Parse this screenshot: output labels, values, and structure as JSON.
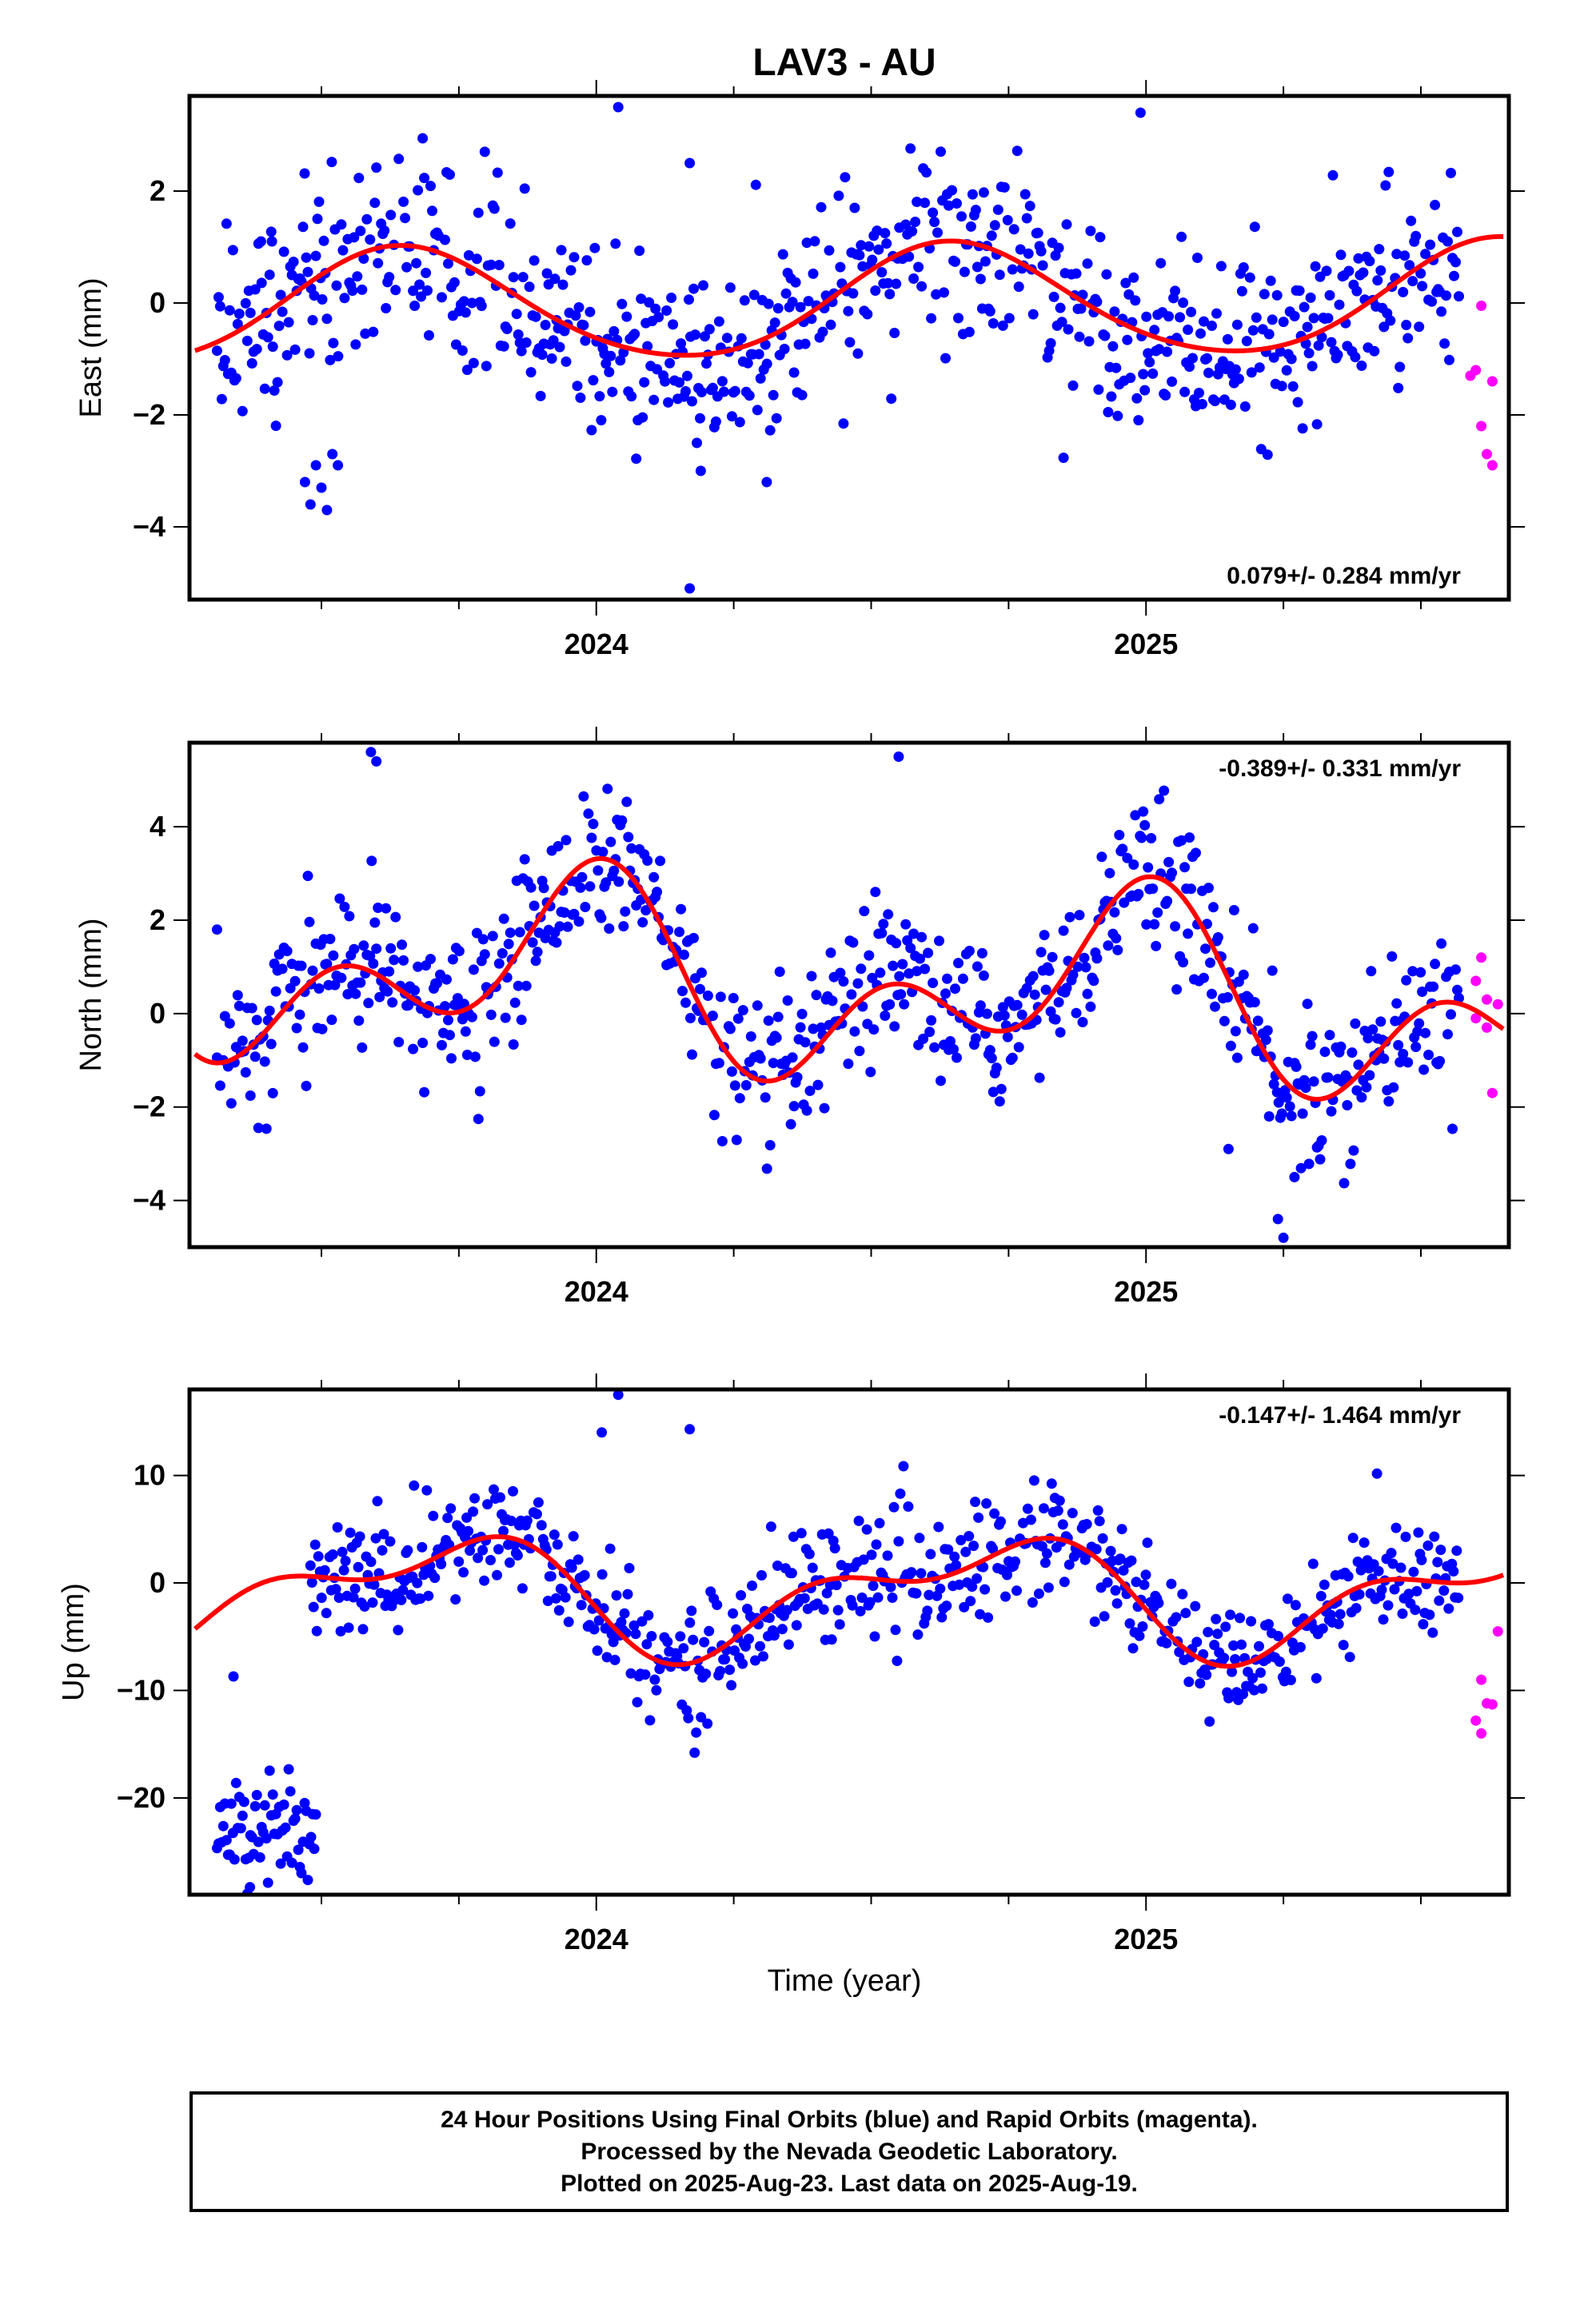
{
  "title": "LAV3 - AU",
  "xlabel": "Time (year)",
  "footer": {
    "line1": "24 Hour Positions Using Final Orbits (blue) and Rapid Orbits (magenta).",
    "line2": "Processed by the Nevada Geodetic Laboratory.",
    "line3": "Plotted on 2025-Aug-23. Last data on 2025-Aug-19."
  },
  "colors": {
    "final": "#0000ff",
    "rapid": "#ff00ff",
    "model": "#ff0000",
    "frame": "#000000"
  },
  "chart_data": [
    {
      "type": "scatter",
      "ylabel": "East (mm)",
      "rate_label": "0.079+/- 0.284 mm/yr",
      "rate_position": "bottom-right",
      "xlim": [
        2023.26,
        2025.66
      ],
      "ylim": [
        -5.3,
        3.7
      ],
      "x_ticks": [
        2024,
        2025
      ],
      "x_tick_labels": [
        "2024",
        "2025"
      ],
      "y_ticks": [
        -4,
        -2,
        0,
        2
      ],
      "y_tick_labels": [
        "−4",
        "−2",
        "0",
        "2"
      ],
      "grid": false,
      "model": {
        "mean": 0.0,
        "rate": 0.079,
        "a1": -1.0,
        "p1": 0.1,
        "a2": 0.1,
        "p2": 0.0
      },
      "final_noise": 0.8,
      "final_span": [
        2023.31,
        2025.57
      ],
      "final_extra": [
        [
          2023.48,
          -3.6
        ],
        [
          2023.5,
          -3.3
        ],
        [
          2023.49,
          -2.9
        ],
        [
          2023.52,
          -2.7
        ],
        [
          2023.47,
          -3.2
        ],
        [
          2023.51,
          -3.7
        ],
        [
          2023.53,
          -2.9
        ],
        [
          2024.17,
          -5.1
        ],
        [
          2024.19,
          -3.0
        ],
        [
          2024.31,
          -3.2
        ],
        [
          2024.99,
          3.4
        ],
        [
          2024.04,
          3.5
        ],
        [
          2024.17,
          2.5
        ],
        [
          2023.39,
          1.1
        ],
        [
          2023.41,
          1.1
        ]
      ],
      "rapid_points": [
        [
          2025.59,
          -1.3
        ],
        [
          2025.6,
          -1.2
        ],
        [
          2025.61,
          -2.2
        ],
        [
          2025.62,
          -2.7
        ],
        [
          2025.63,
          -2.9
        ],
        [
          2025.63,
          -1.4
        ],
        [
          2025.61,
          -0.05
        ]
      ]
    },
    {
      "type": "scatter",
      "ylabel": "North (mm)",
      "rate_label": "-0.389+/- 0.331 mm/yr",
      "rate_position": "top-right",
      "xlim": [
        2023.26,
        2025.66
      ],
      "ylim": [
        -5.0,
        5.8
      ],
      "x_ticks": [
        2024,
        2025
      ],
      "x_tick_labels": [
        "2024",
        "2025"
      ],
      "y_ticks": [
        -4,
        -2,
        0,
        2,
        4
      ],
      "y_tick_labels": [
        "−4",
        "−2",
        "0",
        "2",
        "4"
      ],
      "grid": false,
      "model": {
        "mean": 0.55,
        "rate": -0.389,
        "a1": 1.4,
        "p1": 0.3,
        "a2": 1.3,
        "p2": 0.1
      },
      "final_noise": 0.8,
      "final_span": [
        2023.31,
        2025.57
      ],
      "final_extra": [
        [
          2023.59,
          5.6
        ],
        [
          2023.6,
          5.4
        ],
        [
          2024.55,
          5.5
        ],
        [
          2025.24,
          -4.4
        ],
        [
          2025.25,
          -4.8
        ],
        [
          2025.27,
          -3.5
        ],
        [
          2023.31,
          1.8
        ],
        [
          2025.15,
          -2.9
        ]
      ],
      "rapid_points": [
        [
          2025.6,
          0.7
        ],
        [
          2025.61,
          1.2
        ],
        [
          2025.62,
          0.3
        ],
        [
          2025.62,
          -0.3
        ],
        [
          2025.63,
          -1.7
        ],
        [
          2025.64,
          0.2
        ],
        [
          2025.6,
          -0.1
        ]
      ]
    },
    {
      "type": "scatter",
      "ylabel": "Up (mm)",
      "rate_label": "-0.147+/- 1.464 mm/yr",
      "rate_position": "top-right",
      "xlim": [
        2023.26,
        2025.66
      ],
      "ylim": [
        -29,
        18
      ],
      "x_ticks": [
        2024,
        2025
      ],
      "x_tick_labels": [
        "2024",
        "2025"
      ],
      "y_ticks": [
        -20,
        -10,
        0,
        10
      ],
      "y_tick_labels": [
        "−20",
        "−10",
        "0",
        "10"
      ],
      "grid": false,
      "model": {
        "mean": -1.0,
        "rate": -0.147,
        "a1": 4.5,
        "p1": 0.55,
        "a2": 2.5,
        "p2": 0.25
      },
      "final_noise": 2.8,
      "final_span": [
        2023.48,
        2025.57
      ],
      "offset_cluster": {
        "span": [
          2023.31,
          2023.49
        ],
        "mean": -22.5,
        "noise": 2.6
      },
      "final_extra": [
        [
          2023.34,
          -8.7
        ],
        [
          2023.37,
          -28.3
        ],
        [
          2024.04,
          17.5
        ],
        [
          2024.17,
          14.3
        ],
        [
          2024.01,
          14.0
        ]
      ],
      "rapid_points": [
        [
          2025.6,
          -12.8
        ],
        [
          2025.61,
          -14.0
        ],
        [
          2025.61,
          -9.0
        ],
        [
          2025.62,
          -11.2
        ],
        [
          2025.63,
          -11.3
        ],
        [
          2025.64,
          -4.5
        ]
      ]
    }
  ]
}
